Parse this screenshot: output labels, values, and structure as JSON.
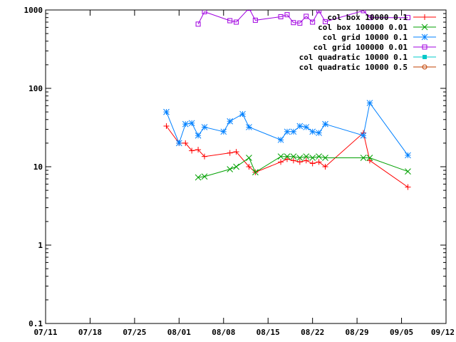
{
  "chart_data": {
    "type": "line",
    "yscale": "log",
    "ylim": [
      0.1,
      1000
    ],
    "xlim": [
      "07/11",
      "09/12"
    ],
    "yticks": [
      "0.1",
      "1",
      "10",
      "100",
      "1000"
    ],
    "xticks": [
      "07/11",
      "07/18",
      "07/25",
      "08/01",
      "08/08",
      "08/15",
      "08/22",
      "08/29",
      "09/05",
      "09/12"
    ],
    "legend_position": "top-right",
    "series": [
      {
        "name": "col box 10000 0.1",
        "color": "#ff0000",
        "marker": "plus",
        "points": [
          [
            "07/30",
            33
          ],
          [
            "08/01",
            20
          ],
          [
            "08/02",
            20
          ],
          [
            "08/03",
            16
          ],
          [
            "08/04",
            16.5
          ],
          [
            "08/05",
            13.5
          ],
          [
            "08/09",
            15
          ],
          [
            "08/10",
            15.5
          ],
          [
            "08/12",
            10
          ],
          [
            "08/13",
            8.5
          ],
          [
            "08/17",
            11.5
          ],
          [
            "08/18",
            12.5
          ],
          [
            "08/19",
            12
          ],
          [
            "08/20",
            11.5
          ],
          [
            "08/21",
            12
          ],
          [
            "08/22",
            11
          ],
          [
            "08/23",
            11.5
          ],
          [
            "08/24",
            10
          ],
          [
            "08/30",
            27
          ],
          [
            "08/31",
            12
          ],
          [
            "09/06",
            5.5
          ]
        ]
      },
      {
        "name": "col box 100000 0.01",
        "color": "#00a000",
        "marker": "cross",
        "points": [
          [
            "08/04",
            7.3
          ],
          [
            "08/05",
            7.5
          ],
          [
            "08/09",
            9.3
          ],
          [
            "08/10",
            10
          ],
          [
            "08/12",
            13
          ],
          [
            "08/13",
            8.5
          ],
          [
            "08/17",
            13.5
          ],
          [
            "08/18",
            13.5
          ],
          [
            "08/19",
            13.5
          ],
          [
            "08/20",
            13
          ],
          [
            "08/21",
            13.5
          ],
          [
            "08/22",
            13
          ],
          [
            "08/23",
            13.5
          ],
          [
            "08/24",
            13
          ],
          [
            "08/30",
            13
          ],
          [
            "08/31",
            13
          ],
          [
            "09/06",
            8.7
          ]
        ]
      },
      {
        "name": "col grid 10000 0.1",
        "color": "#0080ff",
        "marker": "star",
        "points": [
          [
            "07/30",
            50
          ],
          [
            "08/01",
            20
          ],
          [
            "08/02",
            35
          ],
          [
            "08/03",
            36
          ],
          [
            "08/04",
            25
          ],
          [
            "08/05",
            32
          ],
          [
            "08/08",
            28
          ],
          [
            "08/09",
            38
          ],
          [
            "08/11",
            47
          ],
          [
            "08/12",
            32
          ],
          [
            "08/17",
            22
          ],
          [
            "08/18",
            28
          ],
          [
            "08/19",
            28
          ],
          [
            "08/20",
            33
          ],
          [
            "08/21",
            32
          ],
          [
            "08/22",
            28
          ],
          [
            "08/23",
            27
          ],
          [
            "08/24",
            35
          ],
          [
            "08/30",
            25
          ],
          [
            "08/31",
            65
          ],
          [
            "09/06",
            14
          ]
        ]
      },
      {
        "name": "col grid 100000 0.01",
        "color": "#a000e0",
        "marker": "square",
        "points": [
          [
            "08/04",
            660
          ],
          [
            "08/05",
            950
          ],
          [
            "08/09",
            730
          ],
          [
            "08/10",
            700
          ],
          [
            "08/12",
            1050
          ],
          [
            "08/13",
            740
          ],
          [
            "08/17",
            820
          ],
          [
            "08/18",
            870
          ],
          [
            "08/19",
            690
          ],
          [
            "08/20",
            680
          ],
          [
            "08/21",
            830
          ],
          [
            "08/22",
            700
          ],
          [
            "08/23",
            980
          ],
          [
            "08/24",
            710
          ],
          [
            "08/30",
            980
          ],
          [
            "08/31",
            800
          ],
          [
            "09/06",
            800
          ]
        ]
      },
      {
        "name": "col quadratic 10000 0.1",
        "color": "#00c8c8",
        "marker": "filled-square",
        "points": []
      },
      {
        "name": "col quadratic 10000 0.5",
        "color": "#c04000",
        "marker": "circle",
        "points": []
      }
    ]
  }
}
